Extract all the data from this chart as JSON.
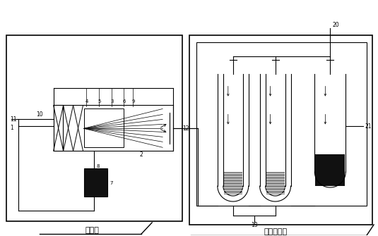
{
  "bg_color": "#ffffff",
  "line_color": "#000000",
  "label1": "溶氢区",
  "label2": "加氢反应区"
}
